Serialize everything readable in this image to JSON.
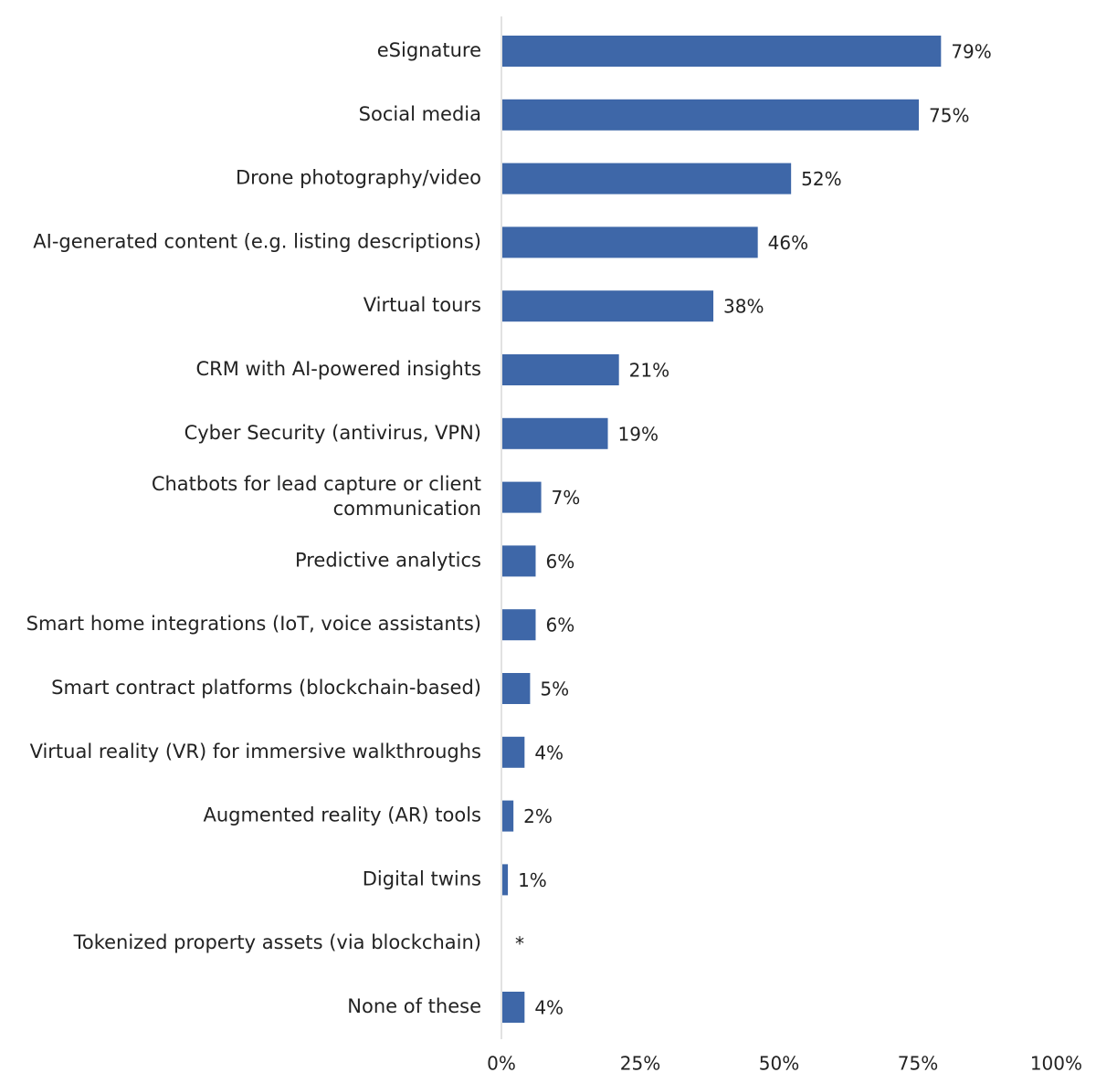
{
  "chart_data": {
    "type": "bar",
    "orientation": "horizontal",
    "categories": [
      "eSignature",
      "Social media",
      "Drone photography/video",
      "AI-generated content (e.g. listing descriptions)",
      "Virtual tours",
      "CRM with AI-powered insights",
      "Cyber Security (antivirus, VPN)",
      "Chatbots for lead capture or client communication",
      "Predictive analytics",
      "Smart home integrations (IoT, voice assistants)",
      "Smart contract platforms (blockchain-based)",
      "Virtual reality (VR) for immersive walkthroughs",
      "Augmented reality (AR) tools",
      "Digital twins",
      "Tokenized property assets (via blockchain)",
      "None of these"
    ],
    "label_lines": [
      [
        "eSignature"
      ],
      [
        "Social media"
      ],
      [
        "Drone photography/video"
      ],
      [
        "AI-generated content (e.g. listing descriptions)"
      ],
      [
        "Virtual tours"
      ],
      [
        "CRM with AI-powered insights"
      ],
      [
        "Cyber Security (antivirus, VPN)"
      ],
      [
        "Chatbots for lead capture or client",
        "communication"
      ],
      [
        "Predictive analytics"
      ],
      [
        "Smart home integrations (IoT, voice assistants)"
      ],
      [
        "Smart contract platforms (blockchain-based)"
      ],
      [
        "Virtual reality (VR) for immersive walkthroughs"
      ],
      [
        "Augmented reality (AR) tools"
      ],
      [
        "Digital twins"
      ],
      [
        "Tokenized property assets (via blockchain)"
      ],
      [
        "None of these"
      ]
    ],
    "values": [
      79,
      75,
      52,
      46,
      38,
      21,
      19,
      7,
      6,
      6,
      5,
      4,
      2,
      1,
      0,
      4
    ],
    "value_labels": [
      "79%",
      "75%",
      "52%",
      "46%",
      "38%",
      "21%",
      "19%",
      "7%",
      "6%",
      "6%",
      "5%",
      "4%",
      "2%",
      "1%",
      "*",
      "4%"
    ],
    "xlim": [
      0,
      100
    ],
    "x_ticks": [
      0,
      25,
      50,
      75,
      100
    ],
    "x_tick_labels": [
      "0%",
      "25%",
      "50%",
      "75%",
      "100%"
    ],
    "title": "",
    "xlabel": "",
    "ylabel": "",
    "grid": false,
    "legend": "none",
    "colors": {
      "bar": "#3E67A8",
      "axis": "#d9d9d9",
      "text": "#222222"
    }
  }
}
